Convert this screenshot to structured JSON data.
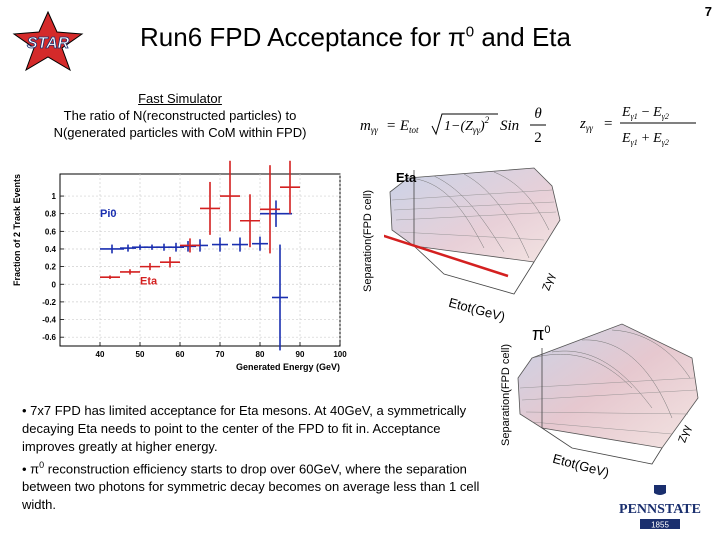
{
  "page_number": "7",
  "title": {
    "before": "Run6 FPD Acceptance for ",
    "pi_symbol": "π",
    "pi_sup": "0",
    "after": " and Eta"
  },
  "logo_star": {
    "text": "STAR",
    "icon": "star-logo-icon",
    "color": "#d42a2a"
  },
  "subtitle": {
    "line1": "Fast Simulator",
    "line2": "The ratio of N(reconstructed particles) to",
    "line3": "N(generated particles with CoM within FPD)"
  },
  "formula_mass": {
    "lhs": "m",
    "lhs_sub": "γγ",
    "rhs": "= E",
    "rhs_sub": "tot",
    "sqrt_body": "1−(Z",
    "sqrt_sub": "γγ",
    "sqrt_sup": "2",
    "sqrt_close": ")",
    "sin": "Sin",
    "frac_num": "θ",
    "frac_den": "2"
  },
  "formula_z": {
    "lhs": "z",
    "lhs_sub": "γγ",
    "eq": "=",
    "num_a": "E",
    "num_a_sub": "γ1",
    "num_op": "−",
    "num_b": "E",
    "num_b_sub": "γ2",
    "den_a": "E",
    "den_a_sub": "γ1",
    "den_op": "+",
    "den_b": "E",
    "den_b_sub": "γ2"
  },
  "chart_data": [
    {
      "type": "scatter",
      "title": "",
      "xlabel": "Generated Energy (GeV)",
      "ylabel": "Fraction of 2 Track Events",
      "xlim": [
        30,
        100
      ],
      "ylim": [
        -0.7,
        1.25
      ],
      "x_ticks": [
        "40",
        "50",
        "60",
        "70",
        "80",
        "90",
        "100"
      ],
      "y_ticks": [
        "-0.6",
        "-0.4",
        "-0.2",
        "0",
        "0.2",
        "0.4",
        "0.6",
        "0.8",
        "1"
      ],
      "grid": true,
      "series": [
        {
          "name": "Pi0",
          "color": "#1a2fb0",
          "points": [
            {
              "x": 43,
              "y": 0.4,
              "xerr": 3,
              "yerr": 0.05
            },
            {
              "x": 47,
              "y": 0.41,
              "xerr": 2,
              "yerr": 0.04
            },
            {
              "x": 50,
              "y": 0.42,
              "xerr": 2,
              "yerr": 0.03
            },
            {
              "x": 53,
              "y": 0.42,
              "xerr": 2,
              "yerr": 0.03
            },
            {
              "x": 56,
              "y": 0.42,
              "xerr": 2,
              "yerr": 0.04
            },
            {
              "x": 59,
              "y": 0.42,
              "xerr": 2,
              "yerr": 0.05
            },
            {
              "x": 62,
              "y": 0.43,
              "xerr": 2,
              "yerr": 0.06
            },
            {
              "x": 65,
              "y": 0.44,
              "xerr": 2,
              "yerr": 0.07
            },
            {
              "x": 70,
              "y": 0.45,
              "xerr": 2,
              "yerr": 0.08
            },
            {
              "x": 75,
              "y": 0.45,
              "xerr": 2,
              "yerr": 0.08
            },
            {
              "x": 80,
              "y": 0.46,
              "xerr": 2,
              "yerr": 0.08
            },
            {
              "x": 84,
              "y": 0.8,
              "xerr": 4,
              "yerr": 0.15
            },
            {
              "x": 85,
              "y": -0.15,
              "xerr": 2,
              "yerr": 0.6
            }
          ]
        },
        {
          "name": "Eta",
          "color": "#d42020",
          "points": [
            {
              "x": 42.5,
              "y": 0.08,
              "xerr": 2.5,
              "yerr": 0.02
            },
            {
              "x": 47.5,
              "y": 0.14,
              "xerr": 2.5,
              "yerr": 0.03
            },
            {
              "x": 52.5,
              "y": 0.2,
              "xerr": 2.5,
              "yerr": 0.04
            },
            {
              "x": 57.5,
              "y": 0.25,
              "xerr": 2.5,
              "yerr": 0.06
            },
            {
              "x": 62.5,
              "y": 0.44,
              "xerr": 2.5,
              "yerr": 0.08
            },
            {
              "x": 67.5,
              "y": 0.86,
              "xerr": 2.5,
              "yerr": 0.3
            },
            {
              "x": 72.5,
              "y": 1.0,
              "xerr": 2.5,
              "yerr": 0.4
            },
            {
              "x": 77.5,
              "y": 0.72,
              "xerr": 2.5,
              "yerr": 0.3
            },
            {
              "x": 82.5,
              "y": 0.85,
              "xerr": 2.5,
              "yerr": 0.5
            },
            {
              "x": 87.5,
              "y": 1.1,
              "xerr": 2.5,
              "yerr": 0.3
            }
          ]
        }
      ]
    },
    {
      "type": "surface",
      "title": "Eta",
      "zlabel": "Separation(FPD cell)",
      "xlabel": "Etot(GeV)",
      "ylabel": "Zγγ"
    },
    {
      "type": "surface",
      "title_symbol": "π",
      "title_sup": "0",
      "zlabel": "Separation(FPD cell)",
      "xlabel": "Etot(GeV)",
      "ylabel": "Zγγ"
    }
  ],
  "bullets": [
    "• 7x7 FPD has limited acceptance for Eta mesons. At 40GeV, a symmetrically decaying Eta needs to point to the center of the FPD to fit in. Acceptance improves greatly at higher energy.",
    {
      "prefix": "• ",
      "symbol": "π",
      "sup": "0",
      "rest": " reconstruction efficiency starts to drop over 60GeV, where the separation between two photons for symmetric decay becomes on average less than 1 cell width."
    }
  ],
  "logo_pennstate": {
    "text": "PENNSTATE",
    "year": "1855",
    "icon": "pennstate-shield-icon",
    "color": "#1a2f6e"
  }
}
